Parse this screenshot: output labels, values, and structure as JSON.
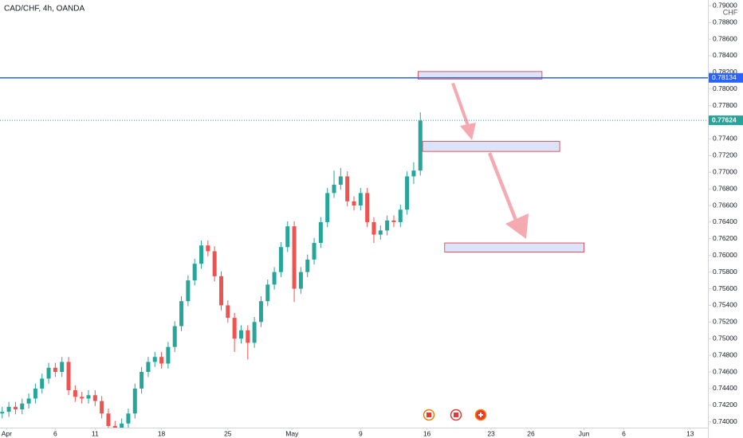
{
  "chart_data": {
    "type": "candlestick",
    "title": "CAD/CHF, 4h, OANDA",
    "currency": "CHF",
    "x": [
      1,
      4,
      7,
      10,
      13,
      16,
      19,
      22,
      25,
      28,
      31,
      34,
      37,
      40,
      43,
      46,
      49,
      52,
      55,
      58,
      61,
      64,
      67,
      70,
      73,
      76,
      79,
      82,
      85,
      88,
      91,
      94,
      97,
      100,
      103,
      106,
      109,
      112,
      115,
      118,
      121,
      124,
      127,
      130,
      133,
      136,
      139,
      142,
      145,
      148,
      151,
      154,
      157,
      160,
      163,
      166,
      169,
      172,
      175,
      178,
      181,
      184,
      187,
      190
    ],
    "open": [
      0.741,
      0.7412,
      0.7418,
      0.7415,
      0.7422,
      0.7428,
      0.744,
      0.7452,
      0.7465,
      0.746,
      0.7472,
      0.7438,
      0.743,
      0.7428,
      0.7432,
      0.7425,
      0.741,
      0.7395,
      0.7392,
      0.7398,
      0.741,
      0.744,
      0.746,
      0.7472,
      0.7478,
      0.747,
      0.749,
      0.7515,
      0.7545,
      0.757,
      0.759,
      0.7612,
      0.7605,
      0.7575,
      0.754,
      0.7525,
      0.75,
      0.751,
      0.7495,
      0.752,
      0.7545,
      0.7565,
      0.758,
      0.761,
      0.7635,
      0.756,
      0.758,
      0.7595,
      0.7615,
      0.764,
      0.7675,
      0.7685,
      0.7695,
      0.7665,
      0.766,
      0.7675,
      0.764,
      0.7625,
      0.763,
      0.7642,
      0.764,
      0.7655,
      0.7695,
      0.7702
    ],
    "high": [
      0.7418,
      0.7424,
      0.7424,
      0.7428,
      0.7434,
      0.7446,
      0.7458,
      0.7471,
      0.7471,
      0.7478,
      0.7478,
      0.7444,
      0.7436,
      0.7438,
      0.7438,
      0.7431,
      0.7416,
      0.7401,
      0.7404,
      0.7416,
      0.7446,
      0.7466,
      0.7478,
      0.7484,
      0.7484,
      0.7496,
      0.7521,
      0.7551,
      0.7576,
      0.7596,
      0.7618,
      0.7618,
      0.7611,
      0.7581,
      0.7546,
      0.7531,
      0.7516,
      0.7516,
      0.7526,
      0.7551,
      0.7571,
      0.7586,
      0.7616,
      0.7641,
      0.7641,
      0.7586,
      0.7601,
      0.7621,
      0.7646,
      0.7681,
      0.7702,
      0.7705,
      0.7701,
      0.7671,
      0.7681,
      0.7681,
      0.7646,
      0.7636,
      0.7648,
      0.7648,
      0.7661,
      0.7701,
      0.7712,
      0.7772
    ],
    "low": [
      0.7404,
      0.7406,
      0.7409,
      0.7409,
      0.7416,
      0.7422,
      0.7434,
      0.7446,
      0.7454,
      0.7454,
      0.7432,
      0.7424,
      0.7422,
      0.7422,
      0.7419,
      0.7404,
      0.7389,
      0.7386,
      0.7386,
      0.7392,
      0.7404,
      0.7434,
      0.7454,
      0.7466,
      0.7464,
      0.7464,
      0.7484,
      0.7509,
      0.7539,
      0.7564,
      0.7584,
      0.7599,
      0.7569,
      0.7534,
      0.7519,
      0.7484,
      0.7494,
      0.7475,
      0.7489,
      0.7514,
      0.7539,
      0.7559,
      0.7574,
      0.7604,
      0.7544,
      0.7554,
      0.7574,
      0.7589,
      0.7609,
      0.7634,
      0.7669,
      0.7679,
      0.7659,
      0.7654,
      0.7654,
      0.7634,
      0.7615,
      0.7619,
      0.7624,
      0.7634,
      0.7634,
      0.7649,
      0.7686,
      0.7696
    ],
    "close": [
      0.7412,
      0.7418,
      0.7415,
      0.7422,
      0.7428,
      0.744,
      0.7452,
      0.7465,
      0.746,
      0.7472,
      0.7438,
      0.743,
      0.7428,
      0.7432,
      0.7425,
      0.741,
      0.7395,
      0.7392,
      0.7398,
      0.741,
      0.744,
      0.746,
      0.7472,
      0.7478,
      0.747,
      0.749,
      0.7515,
      0.7545,
      0.757,
      0.759,
      0.7612,
      0.7605,
      0.7575,
      0.754,
      0.7525,
      0.75,
      0.751,
      0.7495,
      0.752,
      0.7545,
      0.7565,
      0.758,
      0.761,
      0.7635,
      0.756,
      0.758,
      0.7595,
      0.7615,
      0.764,
      0.7675,
      0.7685,
      0.7695,
      0.7665,
      0.766,
      0.7675,
      0.764,
      0.7625,
      0.763,
      0.7642,
      0.764,
      0.7655,
      0.7695,
      0.7702,
      0.7762
    ],
    "up_color": "#26a69a",
    "down_color": "#ef5350",
    "xlim": [
      0,
      320
    ],
    "xticks": [
      {
        "value": 3,
        "label": "Apr"
      },
      {
        "value": 25,
        "label": "6"
      },
      {
        "value": 43,
        "label": "11"
      },
      {
        "value": 73,
        "label": "18"
      },
      {
        "value": 103,
        "label": "25"
      },
      {
        "value": 132,
        "label": "May"
      },
      {
        "value": 163,
        "label": "9"
      },
      {
        "value": 193,
        "label": "16"
      },
      {
        "value": 222,
        "label": "23"
      },
      {
        "value": 240,
        "label": "26"
      },
      {
        "value": 264,
        "label": "Jun"
      },
      {
        "value": 282,
        "label": "6"
      },
      {
        "value": 312,
        "label": "13"
      }
    ],
    "ylim": [
      0.7393,
      0.7907
    ],
    "yticks": [
      {
        "value": 0.74,
        "label": "0.74000"
      },
      {
        "value": 0.742,
        "label": "0.74200"
      },
      {
        "value": 0.744,
        "label": "0.74400"
      },
      {
        "value": 0.746,
        "label": "0.74600"
      },
      {
        "value": 0.748,
        "label": "0.74800"
      },
      {
        "value": 0.75,
        "label": "0.75000"
      },
      {
        "value": 0.752,
        "label": "0.75200"
      },
      {
        "value": 0.754,
        "label": "0.75400"
      },
      {
        "value": 0.756,
        "label": "0.75600"
      },
      {
        "value": 0.758,
        "label": "0.75800"
      },
      {
        "value": 0.76,
        "label": "0.76000"
      },
      {
        "value": 0.762,
        "label": "0.76200"
      },
      {
        "value": 0.764,
        "label": "0.76400"
      },
      {
        "value": 0.766,
        "label": "0.76600"
      },
      {
        "value": 0.768,
        "label": "0.76800"
      },
      {
        "value": 0.77,
        "label": "0.77000"
      },
      {
        "value": 0.772,
        "label": "0.77200"
      },
      {
        "value": 0.774,
        "label": "0.77400"
      },
      {
        "value": 0.776,
        "label": "0.77600"
      },
      {
        "value": 0.778,
        "label": "0.77800"
      },
      {
        "value": 0.78,
        "label": "0.78000"
      },
      {
        "value": 0.782,
        "label": "0.78200"
      },
      {
        "value": 0.784,
        "label": "0.78400"
      },
      {
        "value": 0.786,
        "label": "0.78600"
      },
      {
        "value": 0.788,
        "label": "0.78800"
      },
      {
        "value": 0.79,
        "label": "0.79000"
      }
    ],
    "grid": false,
    "hline": {
      "value": 0.78134,
      "label": "0.78134",
      "color": "#2962ff"
    },
    "last_price": {
      "value": 0.77624,
      "label": "0.77624",
      "color": "#26a69a"
    },
    "zones": [
      {
        "x": [
          189,
          245
        ],
        "y": [
          0.7812,
          0.7821
        ]
      },
      {
        "x": [
          191,
          253
        ],
        "y": [
          0.7725,
          0.7737
        ]
      },
      {
        "x": [
          201,
          264
        ],
        "y": [
          0.7604,
          0.7615
        ]
      }
    ],
    "zone_fill": "#dde3fb",
    "zone_stroke": "#e0303a"
  }
}
